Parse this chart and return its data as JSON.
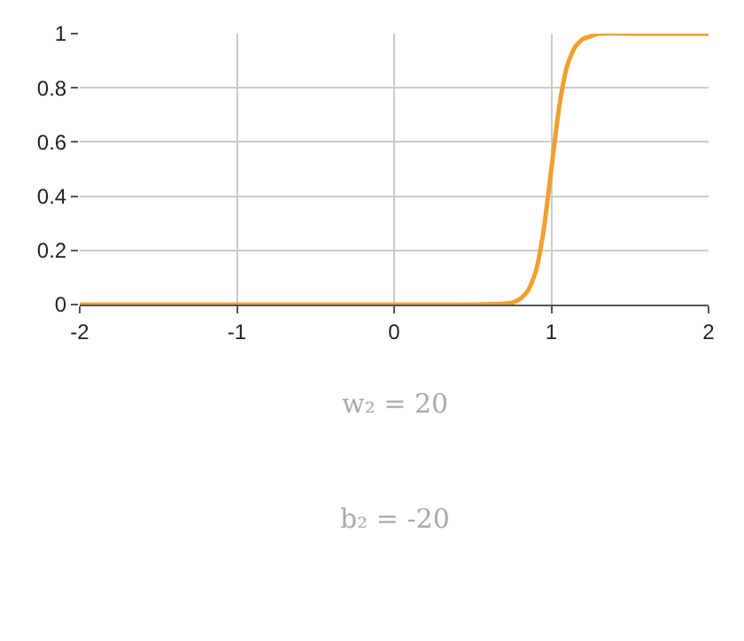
{
  "chart_data": {
    "type": "line",
    "x": [
      -2,
      -1,
      0,
      0.5,
      0.7,
      0.75,
      0.8,
      0.85,
      0.9,
      0.95,
      1,
      1.05,
      1.1,
      1.15,
      1.2,
      1.25,
      1.3,
      1.5,
      2
    ],
    "series": [
      {
        "color": "#f0a030",
        "values": [
          0,
          0,
          0,
          0,
          0.003,
          0.007,
          0.02,
          0.05,
          0.12,
          0.27,
          0.5,
          0.73,
          0.88,
          0.95,
          0.98,
          0.99,
          1,
          1,
          1
        ]
      }
    ],
    "xlim": [
      -2,
      2
    ],
    "xticks": [
      -2,
      -1,
      0,
      1,
      2
    ],
    "ylim": [
      0,
      1
    ],
    "yticks": [
      0,
      0.2,
      0.4,
      0.6,
      0.8,
      1
    ],
    "grid": true,
    "marker": "none",
    "line_style": "solid",
    "annotations": [
      "w₂ = 20",
      "b₂ = -20"
    ]
  }
}
